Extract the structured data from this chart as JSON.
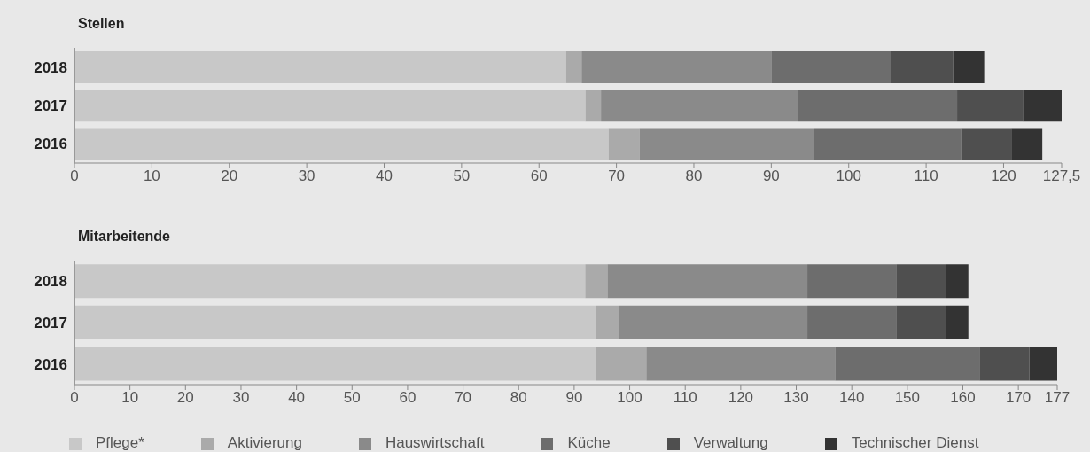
{
  "chart_data": [
    {
      "type": "bar",
      "title": "Stellen",
      "orientation": "horizontal",
      "stacked": true,
      "categories": [
        "2018",
        "2017",
        "2016"
      ],
      "xlim": [
        0,
        127.5
      ],
      "xticks": [
        0,
        10,
        20,
        30,
        40,
        50,
        60,
        70,
        80,
        90,
        100,
        110,
        120,
        {
          "value": 127.5,
          "label": "127,5"
        }
      ],
      "legend": false,
      "series": [
        {
          "color": "#c8c8c8",
          "values": [
            63.5,
            66,
            69
          ]
        },
        {
          "color": "#aaaaaa",
          "values": [
            2,
            2,
            4
          ]
        },
        {
          "color": "#8a8a8a",
          "values": [
            24.5,
            25.5,
            22.5
          ]
        },
        {
          "color": "#6d6d6d",
          "values": [
            15.5,
            20.5,
            19
          ]
        },
        {
          "color": "#4f4f4f",
          "values": [
            8,
            8.5,
            6.5
          ]
        },
        {
          "color": "#333333",
          "values": [
            4,
            5,
            4
          ]
        }
      ]
    },
    {
      "type": "bar",
      "title": "Mitarbeitende",
      "orientation": "horizontal",
      "stacked": true,
      "categories": [
        "2018",
        "2017",
        "2016"
      ],
      "xlim": [
        0,
        177
      ],
      "xticks": [
        0,
        10,
        20,
        30,
        40,
        50,
        60,
        70,
        80,
        90,
        100,
        110,
        120,
        130,
        140,
        150,
        160,
        170,
        177
      ],
      "legend": "bottom",
      "series": [
        {
          "name": "Pflege*",
          "color": "#c8c8c8",
          "values": [
            92,
            94,
            94
          ]
        },
        {
          "name": "Aktivierung",
          "color": "#aaaaaa",
          "values": [
            4,
            4,
            9
          ]
        },
        {
          "name": "Hauswirtschaft",
          "color": "#8a8a8a",
          "values": [
            36,
            34,
            34
          ]
        },
        {
          "name": "Küche",
          "color": "#6d6d6d",
          "values": [
            16,
            16,
            26
          ]
        },
        {
          "name": "Verwaltung",
          "color": "#4f4f4f",
          "values": [
            9,
            9,
            9
          ]
        },
        {
          "name": "Technischer Dienst",
          "color": "#333333",
          "values": [
            4,
            4,
            5
          ]
        }
      ]
    }
  ]
}
